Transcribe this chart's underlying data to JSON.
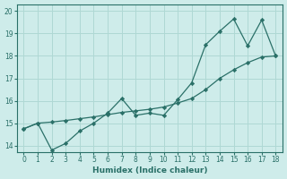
{
  "xlabel": "Humidex (Indice chaleur)",
  "bg_color": "#ceecea",
  "grid_color": "#afd8d4",
  "line_color": "#2a7068",
  "xlim": [
    -0.5,
    18.5
  ],
  "ylim": [
    13.7,
    20.3
  ],
  "xticks": [
    0,
    1,
    2,
    3,
    4,
    5,
    6,
    7,
    8,
    9,
    10,
    11,
    12,
    13,
    14,
    15,
    16,
    17,
    18
  ],
  "yticks": [
    14,
    15,
    16,
    17,
    18,
    19,
    20
  ],
  "line1_x": [
    0,
    1,
    2,
    3,
    4,
    5,
    6,
    7,
    8,
    9,
    10,
    11,
    12,
    13,
    14,
    15,
    16,
    17,
    18
  ],
  "line1_y": [
    14.75,
    15.0,
    13.8,
    14.1,
    14.65,
    15.0,
    15.45,
    16.1,
    15.35,
    15.45,
    15.35,
    16.05,
    16.8,
    18.5,
    19.1,
    19.65,
    18.45,
    19.6,
    18.0
  ],
  "line2_x": [
    0,
    1,
    2,
    3,
    4,
    5,
    6,
    7,
    8,
    9,
    10,
    11,
    12,
    13,
    14,
    15,
    16,
    17,
    18
  ],
  "line2_y": [
    14.75,
    15.0,
    15.05,
    15.12,
    15.2,
    15.28,
    15.38,
    15.48,
    15.55,
    15.62,
    15.72,
    15.9,
    16.1,
    16.5,
    17.0,
    17.38,
    17.7,
    17.95,
    18.0
  ]
}
